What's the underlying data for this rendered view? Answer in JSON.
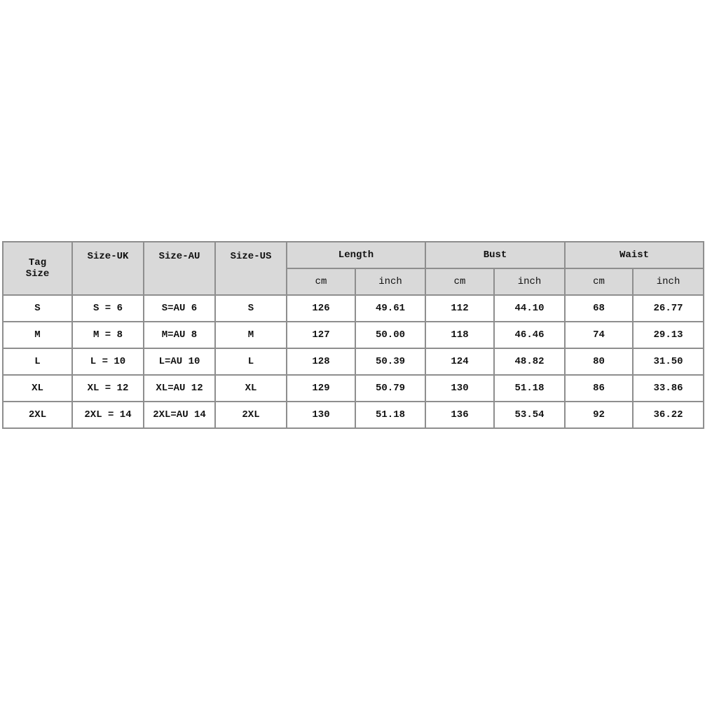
{
  "headers": {
    "tag_size": [
      "Tag",
      "Size"
    ],
    "size_uk": "Size-UK",
    "size_au": "Size-AU",
    "size_us": "Size-US",
    "groups": [
      "Length",
      "Bust",
      "Waist"
    ],
    "units": [
      "cm",
      "inch"
    ]
  },
  "rows": [
    [
      "S",
      "S = 6",
      "S=AU 6",
      "S",
      "126",
      "49.61",
      "112",
      "44.10",
      "68",
      "26.77"
    ],
    [
      "M",
      "M = 8",
      "M=AU 8",
      "M",
      "127",
      "50.00",
      "118",
      "46.46",
      "74",
      "29.13"
    ],
    [
      "L",
      "L = 10",
      "L=AU 10",
      "L",
      "128",
      "50.39",
      "124",
      "48.82",
      "80",
      "31.50"
    ],
    [
      "XL",
      "XL = 12",
      "XL=AU 12",
      "XL",
      "129",
      "50.79",
      "130",
      "51.18",
      "86",
      "33.86"
    ],
    [
      "2XL",
      "2XL = 14",
      "2XL=AU 14",
      "2XL",
      "130",
      "51.18",
      "136",
      "53.54",
      "92",
      "36.22"
    ]
  ]
}
